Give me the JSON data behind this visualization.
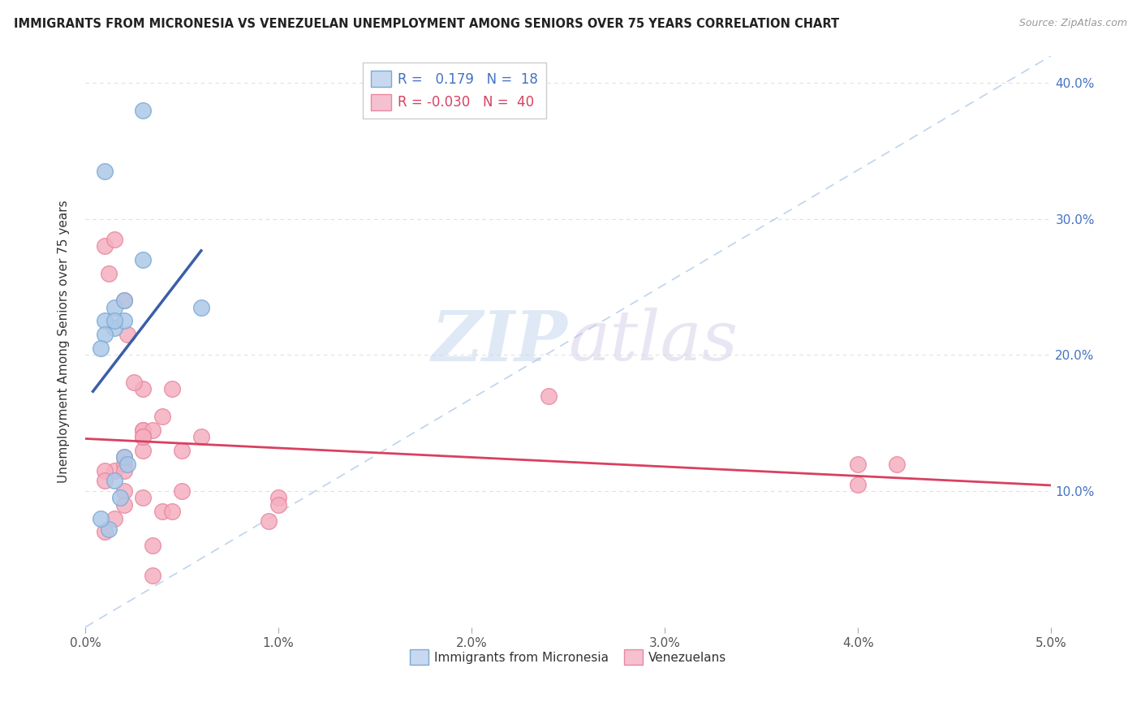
{
  "title": "IMMIGRANTS FROM MICRONESIA VS VENEZUELAN UNEMPLOYMENT AMONG SENIORS OVER 75 YEARS CORRELATION CHART",
  "source": "Source: ZipAtlas.com",
  "ylabel": "Unemployment Among Seniors over 75 years",
  "xlim": [
    0.0,
    0.05
  ],
  "ylim": [
    0.0,
    0.42
  ],
  "xticks": [
    0.0,
    0.01,
    0.02,
    0.03,
    0.04,
    0.05
  ],
  "xticklabels": [
    "0.0%",
    "1.0%",
    "2.0%",
    "3.0%",
    "4.0%",
    "5.0%"
  ],
  "yticks_left": [
    0.0,
    0.1,
    0.2,
    0.3,
    0.4
  ],
  "yticks_right": [
    0.1,
    0.2,
    0.3,
    0.4
  ],
  "yticklabels_right": [
    "10.0%",
    "20.0%",
    "30.0%",
    "40.0%"
  ],
  "legend_r_blue": "0.179",
  "legend_n_blue": "18",
  "legend_r_pink": "-0.030",
  "legend_n_pink": "40",
  "blue_color": "#adc8e8",
  "pink_color": "#f5afc0",
  "blue_edge_color": "#7aaad4",
  "pink_edge_color": "#e888a0",
  "trendline_blue_color": "#3a5faa",
  "trendline_pink_color": "#d94060",
  "trendline_dashed_color": "#b0c8e8",
  "blue_scatter_x": [
    0.001,
    0.003,
    0.0015,
    0.002,
    0.0015,
    0.001,
    0.002,
    0.001,
    0.0008,
    0.0015,
    0.003,
    0.002,
    0.0022,
    0.006,
    0.0015,
    0.0018,
    0.0012,
    0.0008
  ],
  "blue_scatter_y": [
    0.335,
    0.38,
    0.235,
    0.24,
    0.22,
    0.225,
    0.225,
    0.215,
    0.205,
    0.225,
    0.27,
    0.125,
    0.12,
    0.235,
    0.108,
    0.095,
    0.072,
    0.08
  ],
  "pink_scatter_x": [
    0.001,
    0.0015,
    0.002,
    0.0012,
    0.002,
    0.0022,
    0.003,
    0.001,
    0.002,
    0.003,
    0.003,
    0.004,
    0.0035,
    0.003,
    0.003,
    0.0045,
    0.002,
    0.005,
    0.006,
    0.0015,
    0.0025,
    0.003,
    0.005,
    0.04,
    0.01,
    0.001,
    0.002,
    0.002,
    0.004,
    0.003,
    0.0045,
    0.001,
    0.0015,
    0.0035,
    0.01,
    0.0035,
    0.0095,
    0.042,
    0.04,
    0.024
  ],
  "pink_scatter_y": [
    0.28,
    0.115,
    0.12,
    0.26,
    0.24,
    0.215,
    0.145,
    0.115,
    0.125,
    0.13,
    0.145,
    0.155,
    0.145,
    0.14,
    0.175,
    0.175,
    0.115,
    0.13,
    0.14,
    0.285,
    0.18,
    0.14,
    0.1,
    0.12,
    0.095,
    0.108,
    0.1,
    0.09,
    0.085,
    0.095,
    0.085,
    0.07,
    0.08,
    0.06,
    0.09,
    0.038,
    0.078,
    0.12,
    0.105,
    0.17
  ],
  "watermark_zip": "ZIP",
  "watermark_atlas": "atlas",
  "background_color": "#ffffff",
  "grid_color": "#e0e0e0"
}
